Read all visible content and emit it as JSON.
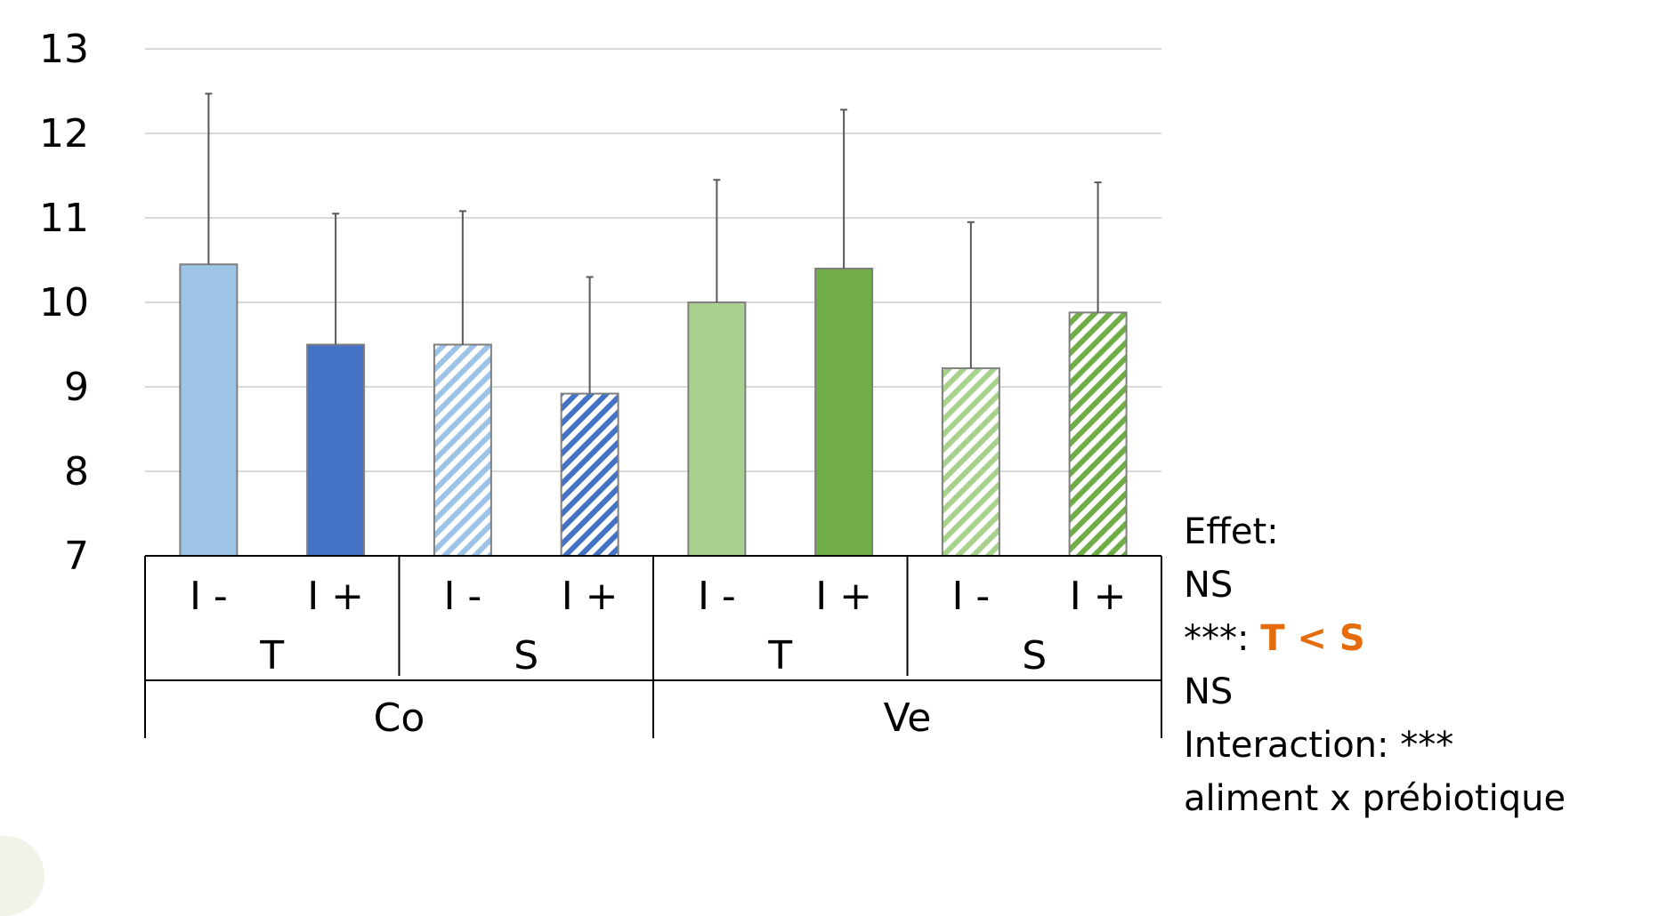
{
  "chart_data": {
    "type": "bar",
    "yticks": [
      "7",
      "8",
      "9",
      "10",
      "11",
      "12",
      "13"
    ],
    "ylim": [
      7,
      13
    ],
    "grid": true,
    "categories": [
      "I -",
      "I +",
      "I -",
      "I +",
      "I -",
      "I +",
      "I -",
      "I +"
    ],
    "values": [
      10.45,
      9.5,
      9.5,
      8.92,
      10.0,
      10.4,
      9.22,
      9.88
    ],
    "error_upper": [
      12.47,
      11.05,
      11.08,
      10.3,
      11.45,
      12.28,
      10.95,
      11.42
    ],
    "level2_labels": [
      "T",
      "S",
      "T",
      "S"
    ],
    "level3_labels": [
      "Co",
      "Ve"
    ],
    "colors": [
      "#9dc3e6",
      "#4472c4",
      "#9dc3e6",
      "#4472c4",
      "#a9d18e",
      "#70ad47",
      "#a9d18e",
      "#70ad47"
    ],
    "hatched": [
      false,
      false,
      true,
      true,
      false,
      false,
      true,
      true
    ]
  },
  "stats": {
    "line1": "Effet:",
    "line2": "NS",
    "line3_prefix": "***: ",
    "line3_highlight": "T < S",
    "highlight_color": "#e46c0a",
    "line4": "NS",
    "line5": "Interaction: ***",
    "line6": "aliment x prébiotique"
  }
}
